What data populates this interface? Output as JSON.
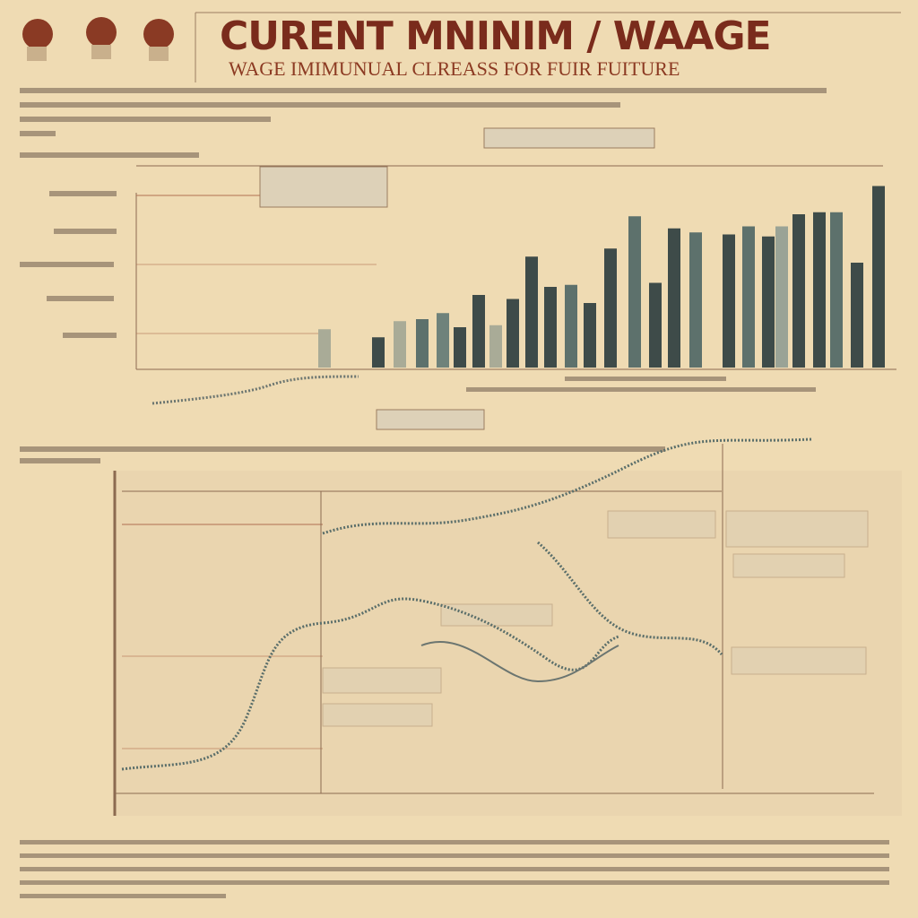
{
  "header": {
    "title": "CURENT MNINIM / WAAGE",
    "subtitle": "WAGE IMIMUNUAL CLREASS FOR FUIR FUITURE"
  },
  "chart_data": {
    "type": "bar",
    "ylim": [
      0,
      100
    ],
    "values": [
      19,
      15,
      23,
      24,
      27,
      20,
      36,
      21,
      34,
      55,
      40,
      41,
      32,
      59,
      75,
      42,
      69,
      67,
      66,
      70,
      65,
      70,
      76,
      77,
      77,
      52,
      90
    ],
    "colors": [
      "#a9ab97",
      "#3e4b49",
      "#a9ab97",
      "#5d716c",
      "#6f827b",
      "#3e4b49",
      "#3e4b49",
      "#a9ab97",
      "#3e4b49",
      "#3e4b49",
      "#3e4b49",
      "#5d716c",
      "#3e4b49",
      "#3e4b49",
      "#5d716c",
      "#3e4b49",
      "#3e4b49",
      "#5d716c",
      "#3e4b49",
      "#5d716c",
      "#3e4b49",
      "#9aa396",
      "#3e4b49",
      "#3e4b49",
      "#5d716c",
      "#3e4b49",
      "#3e4b49"
    ]
  }
}
